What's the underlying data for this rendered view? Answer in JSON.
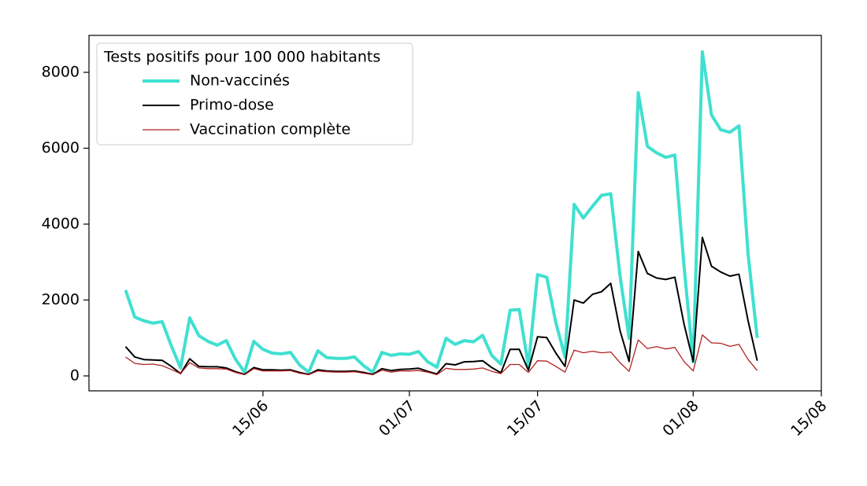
{
  "chart_data": {
    "type": "line",
    "legend_title": "Tests positifs pour 100 000 habitants",
    "legend_position": "upper left",
    "x": [
      "31/05",
      "01/06",
      "02/06",
      "03/06",
      "04/06",
      "05/06",
      "06/06",
      "07/06",
      "08/06",
      "09/06",
      "10/06",
      "11/06",
      "12/06",
      "13/06",
      "14/06",
      "15/06",
      "16/06",
      "17/06",
      "18/06",
      "19/06",
      "20/06",
      "21/06",
      "22/06",
      "23/06",
      "24/06",
      "25/06",
      "26/06",
      "27/06",
      "28/06",
      "29/06",
      "30/06",
      "01/07",
      "02/07",
      "03/07",
      "04/07",
      "05/07",
      "06/07",
      "07/07",
      "08/07",
      "09/07",
      "10/07",
      "11/07",
      "12/07",
      "13/07",
      "14/07",
      "15/07",
      "16/07",
      "17/07",
      "18/07",
      "19/07",
      "20/07",
      "21/07",
      "22/07",
      "23/07",
      "24/07",
      "25/07",
      "26/07",
      "27/07",
      "28/07",
      "29/07",
      "30/07",
      "31/07",
      "01/08",
      "02/08",
      "03/08",
      "04/08",
      "05/08",
      "06/08",
      "07/08",
      "08/08"
    ],
    "series": [
      {
        "name": "Non-vaccinés",
        "color": "#40e0d0",
        "width": 4,
        "values": [
          2260,
          1550,
          1450,
          1390,
          1430,
          790,
          210,
          1530,
          1060,
          910,
          810,
          930,
          440,
          100,
          910,
          700,
          600,
          580,
          620,
          290,
          100,
          660,
          480,
          460,
          460,
          500,
          270,
          100,
          620,
          540,
          580,
          570,
          640,
          370,
          230,
          990,
          830,
          930,
          900,
          1070,
          540,
          310,
          1730,
          1750,
          270,
          2670,
          2600,
          1400,
          500,
          4520,
          4160,
          4470,
          4760,
          4800,
          2650,
          990,
          7460,
          6050,
          5880,
          5760,
          5820,
          2900,
          370,
          8540,
          6880,
          6490,
          6420,
          6590,
          3210,
          1000
        ]
      },
      {
        "name": "Primo-dose",
        "color": "#000000",
        "width": 2,
        "values": [
          770,
          500,
          430,
          420,
          410,
          250,
          60,
          450,
          250,
          240,
          240,
          210,
          110,
          40,
          220,
          160,
          160,
          150,
          160,
          90,
          40,
          160,
          130,
          120,
          120,
          130,
          90,
          40,
          190,
          140,
          170,
          180,
          200,
          120,
          50,
          320,
          290,
          370,
          380,
          400,
          220,
          80,
          700,
          700,
          150,
          1030,
          1010,
          600,
          250,
          2000,
          1920,
          2150,
          2220,
          2440,
          1200,
          380,
          3280,
          2700,
          2580,
          2540,
          2600,
          1370,
          380,
          3650,
          2890,
          2740,
          2630,
          2680,
          1450,
          400
        ]
      },
      {
        "name": "Vaccination complète",
        "color": "#b22222",
        "width": 1.3,
        "values": [
          500,
          330,
          300,
          310,
          270,
          170,
          60,
          350,
          210,
          190,
          190,
          180,
          90,
          30,
          190,
          130,
          130,
          130,
          140,
          70,
          30,
          130,
          110,
          100,
          100,
          110,
          70,
          30,
          150,
          100,
          130,
          130,
          140,
          100,
          30,
          200,
          170,
          170,
          180,
          210,
          120,
          60,
          300,
          300,
          90,
          400,
          390,
          250,
          100,
          680,
          610,
          650,
          610,
          630,
          350,
          120,
          950,
          720,
          770,
          710,
          750,
          380,
          130,
          1080,
          870,
          860,
          780,
          830,
          430,
          140
        ]
      }
    ],
    "xlim": [
      "27/05",
      "15/08"
    ],
    "xticks": [
      "15/06",
      "01/07",
      "15/07",
      "01/08",
      "15/08"
    ],
    "ylim": [
      -394,
      8974
    ],
    "yticks": [
      0,
      2000,
      4000,
      6000,
      8000
    ]
  }
}
